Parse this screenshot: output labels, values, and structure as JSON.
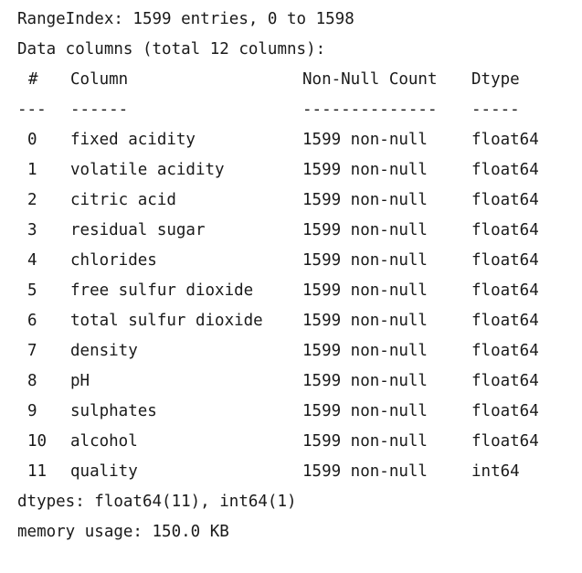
{
  "summary": {
    "range_index": "RangeIndex: 1599 entries, 0 to 1598",
    "data_columns": "Data columns (total 12 columns):"
  },
  "table": {
    "headers": {
      "index": "#",
      "column": "Column",
      "count": "Non-Null Count",
      "dtype": "Dtype"
    },
    "separators": {
      "index": "---",
      "column": "------",
      "count": "--------------",
      "dtype": "-----"
    },
    "rows": [
      {
        "index": "0",
        "column": "fixed acidity",
        "count": "1599 non-null",
        "dtype": "float64"
      },
      {
        "index": "1",
        "column": "volatile acidity",
        "count": "1599 non-null",
        "dtype": "float64"
      },
      {
        "index": "2",
        "column": "citric acid",
        "count": "1599 non-null",
        "dtype": "float64"
      },
      {
        "index": "3",
        "column": "residual sugar",
        "count": "1599 non-null",
        "dtype": "float64"
      },
      {
        "index": "4",
        "column": "chlorides",
        "count": "1599 non-null",
        "dtype": "float64"
      },
      {
        "index": "5",
        "column": "free sulfur dioxide",
        "count": "1599 non-null",
        "dtype": "float64"
      },
      {
        "index": "6",
        "column": "total sulfur dioxide",
        "count": "1599 non-null",
        "dtype": "float64"
      },
      {
        "index": "7",
        "column": "density",
        "count": "1599 non-null",
        "dtype": "float64"
      },
      {
        "index": "8",
        "column": "pH",
        "count": "1599 non-null",
        "dtype": "float64"
      },
      {
        "index": "9",
        "column": "sulphates",
        "count": "1599 non-null",
        "dtype": "float64"
      },
      {
        "index": "10",
        "column": "alcohol",
        "count": "1599 non-null",
        "dtype": "float64"
      },
      {
        "index": "11",
        "column": "quality",
        "count": "1599 non-null",
        "dtype": "int64"
      }
    ]
  },
  "footer": {
    "dtypes": "dtypes: float64(11), int64(1)",
    "memory": "memory usage: 150.0 KB"
  }
}
